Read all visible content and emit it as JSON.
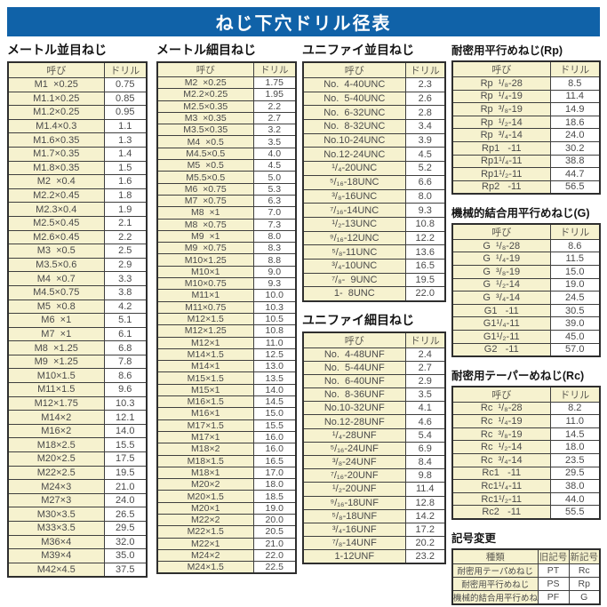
{
  "title": "ねじ下穴ドリル径表",
  "colors": {
    "title_bg": "#1062a8",
    "title_text": "#ffffff",
    "cell_fill": "#f6f2cf",
    "border": "#3f3f3f",
    "text": "#4a4a4a"
  },
  "sections": {
    "metric_coarse": {
      "heading": "メートル並目ねじ",
      "headers": [
        "呼び",
        "ドリル"
      ],
      "rows": [
        [
          "M1  ×0.25",
          "0.75"
        ],
        [
          "M1.1×0.25",
          "0.85"
        ],
        [
          "M1.2×0.25",
          "0.95"
        ],
        [
          "M1.4×0.3",
          "1.1"
        ],
        [
          "M1.6×0.35",
          "1.3"
        ],
        [
          "M1.7×0.35",
          "1.4"
        ],
        [
          "M1.8×0.35",
          "1.5"
        ],
        [
          "M2  ×0.4",
          "1.6"
        ],
        [
          "M2.2×0.45",
          "1.8"
        ],
        [
          "M2.3×0.4",
          "1.9"
        ],
        [
          "M2.5×0.45",
          "2.1"
        ],
        [
          "M2.6×0.45",
          "2.2"
        ],
        [
          "M3  ×0.5",
          "2.5"
        ],
        [
          "M3.5×0.6",
          "2.9"
        ],
        [
          "M4  ×0.7",
          "3.3"
        ],
        [
          "M4.5×0.75",
          "3.8"
        ],
        [
          "M5  ×0.8",
          "4.2"
        ],
        [
          "M6  ×1",
          "5.1"
        ],
        [
          "M7  ×1",
          "6.1"
        ],
        [
          "M8  ×1.25",
          "6.8"
        ],
        [
          "M9  ×1.25",
          "7.8"
        ],
        [
          "M10×1.5",
          "8.6"
        ],
        [
          "M11×1.5",
          "9.6"
        ],
        [
          "M12×1.75",
          "10.3"
        ],
        [
          "M14×2",
          "12.1"
        ],
        [
          "M16×2",
          "14.0"
        ],
        [
          "M18×2.5",
          "15.5"
        ],
        [
          "M20×2.5",
          "17.5"
        ],
        [
          "M22×2.5",
          "19.5"
        ],
        [
          "M24×3",
          "21.0"
        ],
        [
          "M27×3",
          "24.0"
        ],
        [
          "M30×3.5",
          "26.5"
        ],
        [
          "M33×3.5",
          "29.5"
        ],
        [
          "M36×4",
          "32.0"
        ],
        [
          "M39×4",
          "35.0"
        ],
        [
          "M42×4.5",
          "37.5"
        ]
      ]
    },
    "metric_fine": {
      "heading": "メートル細目ねじ",
      "headers": [
        "呼び",
        "ドリル"
      ],
      "rows": [
        [
          "M2  ×0.25",
          "1.75"
        ],
        [
          "M2.2×0.25",
          "1.95"
        ],
        [
          "M2.5×0.35",
          "2.2"
        ],
        [
          "M3  ×0.35",
          "2.7"
        ],
        [
          "M3.5×0.35",
          "3.2"
        ],
        [
          "M4  ×0.5",
          "3.5"
        ],
        [
          "M4.5×0.5",
          "4.0"
        ],
        [
          "M5  ×0.5",
          "4.5"
        ],
        [
          "M5.5×0.5",
          "5.0"
        ],
        [
          "M6  ×0.75",
          "5.3"
        ],
        [
          "M7  ×0.75",
          "6.3"
        ],
        [
          "M8  ×1",
          "7.0"
        ],
        [
          "M8  ×0.75",
          "7.3"
        ],
        [
          "M9  ×1",
          "8.0"
        ],
        [
          "M9  ×0.75",
          "8.3"
        ],
        [
          "M10×1.25",
          "8.8"
        ],
        [
          "M10×1",
          "9.0"
        ],
        [
          "M10×0.75",
          "9.3"
        ],
        [
          "M11×1",
          "10.0"
        ],
        [
          "M11×0.75",
          "10.3"
        ],
        [
          "M12×1.5",
          "10.5"
        ],
        [
          "M12×1.25",
          "10.8"
        ],
        [
          "M12×1",
          "11.0"
        ],
        [
          "M14×1.5",
          "12.5"
        ],
        [
          "M14×1",
          "13.0"
        ],
        [
          "M15×1.5",
          "13.5"
        ],
        [
          "M15×1",
          "14.0"
        ],
        [
          "M16×1.5",
          "14.5"
        ],
        [
          "M16×1",
          "15.0"
        ],
        [
          "M17×1.5",
          "15.5"
        ],
        [
          "M17×1",
          "16.0"
        ],
        [
          "M18×2",
          "16.0"
        ],
        [
          "M18×1.5",
          "16.5"
        ],
        [
          "M18×1",
          "17.0"
        ],
        [
          "M20×2",
          "18.0"
        ],
        [
          "M20×1.5",
          "18.5"
        ],
        [
          "M20×1",
          "19.0"
        ],
        [
          "M22×2",
          "20.0"
        ],
        [
          "M22×1.5",
          "20.5"
        ],
        [
          "M22×1",
          "21.0"
        ],
        [
          "M24×2",
          "22.0"
        ],
        [
          "M24×1.5",
          "22.5"
        ]
      ]
    },
    "unc": {
      "heading": "ユニファイ並目ねじ",
      "headers": [
        "呼び",
        "ドリル"
      ],
      "rows": [
        [
          "No.  4-40UNC",
          "2.3"
        ],
        [
          "No.  5-40UNC",
          "2.6"
        ],
        [
          "No.  6-32UNC",
          "2.8"
        ],
        [
          "No.  8-32UNC",
          "3.4"
        ],
        [
          "No.10-24UNC",
          "3.9"
        ],
        [
          "No.12-24UNC",
          "4.5"
        ],
        [
          "¹/₄-20UNC",
          "5.2"
        ],
        [
          "⁵/₁₆-18UNC",
          "6.6"
        ],
        [
          "³/₈-16UNC",
          "8.0"
        ],
        [
          "⁷/₁₆-14UNC",
          "9.3"
        ],
        [
          "¹/₂-13UNC",
          "10.8"
        ],
        [
          "⁹/₁₆-12UNC",
          "12.2"
        ],
        [
          "⁵/₈-11UNC",
          "13.6"
        ],
        [
          "³/₄-10UNC",
          "16.5"
        ],
        [
          "⁷/₈-  9UNC",
          "19.5"
        ],
        [
          "1-  8UNC",
          "22.0"
        ]
      ]
    },
    "unf": {
      "heading": "ユニファイ細目ねじ",
      "headers": [
        "呼び",
        "ドリル"
      ],
      "rows": [
        [
          "No.  4-48UNF",
          "2.4"
        ],
        [
          "No.  5-44UNF",
          "2.7"
        ],
        [
          "No.  6-40UNF",
          "2.9"
        ],
        [
          "No.  8-36UNF",
          "3.5"
        ],
        [
          "No.10-32UNF",
          "4.1"
        ],
        [
          "No.12-28UNF",
          "4.6"
        ],
        [
          "¹/₄-28UNF",
          "5.4"
        ],
        [
          "⁵/₁₆-24UNF",
          "6.9"
        ],
        [
          "³/₈-24UNF",
          "8.4"
        ],
        [
          "⁷/₁₆-20UNF",
          "9.8"
        ],
        [
          "¹/₂-20UNF",
          "11.4"
        ],
        [
          "⁹/₁₆-18UNF",
          "12.8"
        ],
        [
          "⁵/₈-18UNF",
          "14.2"
        ],
        [
          "³/₄-16UNF",
          "17.2"
        ],
        [
          "⁷/₈-14UNF",
          "20.2"
        ],
        [
          "1-12UNF",
          "23.2"
        ]
      ]
    },
    "rp": {
      "heading": "耐密用平行めねじ(Rp)",
      "headers": [
        "呼び",
        "ドリル"
      ],
      "rows": [
        [
          "Rp  ¹/₈-28",
          "8.5"
        ],
        [
          "Rp  ¹/₄-19",
          "11.4"
        ],
        [
          "Rp  ³/₈-19",
          "14.9"
        ],
        [
          "Rp  ¹/₂-14",
          "18.6"
        ],
        [
          "Rp  ³/₄-14",
          "24.0"
        ],
        [
          "Rp1   -11",
          "30.2"
        ],
        [
          "Rp1¹/₄-11",
          "38.8"
        ],
        [
          "Rp1¹/₂-11",
          "44.7"
        ],
        [
          "Rp2   -11",
          "56.5"
        ]
      ]
    },
    "g": {
      "heading": "機械的結合用平行めねじ(G)",
      "headers": [
        "呼び",
        "ドリル"
      ],
      "rows": [
        [
          "G  ¹/₈-28",
          "8.6"
        ],
        [
          "G  ¹/₄-19",
          "11.5"
        ],
        [
          "G  ³/₈-19",
          "15.0"
        ],
        [
          "G  ¹/₂-14",
          "19.0"
        ],
        [
          "G  ³/₄-14",
          "24.5"
        ],
        [
          "G1   -11",
          "30.5"
        ],
        [
          "G1¹/₄-11",
          "39.0"
        ],
        [
          "G1¹/₂-11",
          "45.0"
        ],
        [
          "G2   -11",
          "57.0"
        ]
      ]
    },
    "rc": {
      "heading": "耐密用テーパーめねじ(Rc)",
      "headers": [
        "呼び",
        "ドリル"
      ],
      "rows": [
        [
          "Rc  ¹/₈-28",
          "8.2"
        ],
        [
          "Rc  ¹/₄-19",
          "11.0"
        ],
        [
          "Rc  ³/₈-19",
          "14.5"
        ],
        [
          "Rc  ¹/₂-14",
          "18.0"
        ],
        [
          "Rc  ³/₄-14",
          "23.5"
        ],
        [
          "Rc1   -11",
          "29.5"
        ],
        [
          "Rc1¹/₄-11",
          "38.0"
        ],
        [
          "Rc1¹/₂-11",
          "44.0"
        ],
        [
          "Rc2   -11",
          "55.5"
        ]
      ]
    },
    "symbol_change": {
      "heading": "記号変更",
      "headers": [
        "種類",
        "旧記号",
        "新記号"
      ],
      "rows": [
        [
          "耐密用テーパめねじ",
          "PT",
          "Rc"
        ],
        [
          "耐密用平行めねじ",
          "PS",
          "Rp"
        ],
        [
          "機械的結合用平行めねじ",
          "PF",
          "G"
        ]
      ]
    }
  }
}
